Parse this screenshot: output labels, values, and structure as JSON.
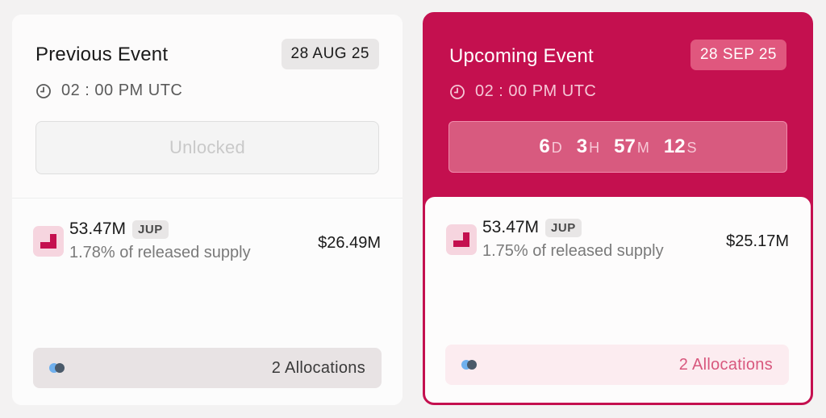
{
  "previous": {
    "title": "Previous Event",
    "date": "28 AUG 25",
    "time": "02 : 00 PM UTC",
    "status": "Unlocked",
    "amount": "53.47M",
    "token": "JUP",
    "supply": "1.78% of released supply",
    "usd": "$26.49M",
    "allocations": "2 Allocations"
  },
  "upcoming": {
    "title": "Upcoming Event",
    "date": "28 SEP 25",
    "time": "02 : 00 PM UTC",
    "countdown": {
      "days": "6",
      "days_label": "D",
      "hours": "3",
      "hours_label": "H",
      "minutes": "57",
      "minutes_label": "M",
      "seconds": "12",
      "seconds_label": "S"
    },
    "amount": "53.47M",
    "token": "JUP",
    "supply": "1.75% of released supply",
    "usd": "$25.17M",
    "allocations": "2 Allocations"
  },
  "colors": {
    "accent": "#c4104f",
    "dot_blue": "#6fb0ee",
    "dot_dark": "#4a5a6a"
  }
}
